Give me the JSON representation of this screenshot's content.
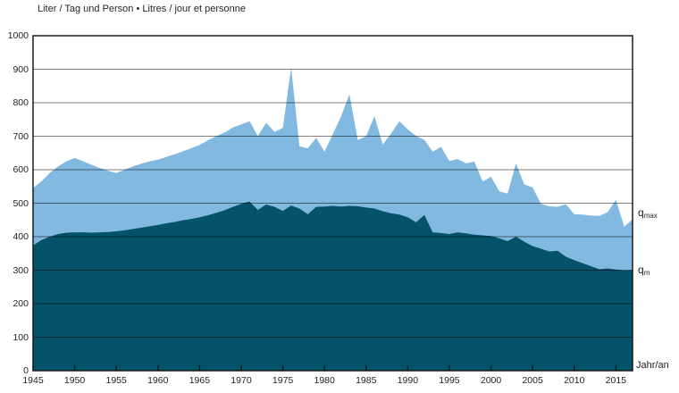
{
  "title": "Liter / Tag und Person • Litres / jour et personne",
  "axis": {
    "x_label": "Jahr/an",
    "y_ticks": [
      0,
      100,
      200,
      300,
      400,
      500,
      600,
      700,
      800,
      900,
      1000
    ],
    "x_ticks": [
      1945,
      1950,
      1955,
      1960,
      1965,
      1970,
      1975,
      1980,
      1985,
      1990,
      1995,
      2000,
      2005,
      2010,
      2015
    ]
  },
  "series_labels": {
    "qmax": {
      "base": "q",
      "sub": "max"
    },
    "qm": {
      "base": "q",
      "sub": "m"
    }
  },
  "colors": {
    "qmax": "#82B9E0",
    "qm": "#05536A",
    "grid": "#000000",
    "border": "#1a1a1a",
    "text": "#1f1f1f"
  },
  "chart_data": {
    "type": "area",
    "title": "Liter / Tag und Person • Litres / jour et personne",
    "xlabel": "Jahr/an",
    "ylabel": "Liter / Tag und Person",
    "ylim": [
      0,
      1000
    ],
    "grid": true,
    "legend_position": "right-outside",
    "x": [
      1945,
      1946,
      1947,
      1948,
      1949,
      1950,
      1951,
      1952,
      1953,
      1954,
      1955,
      1956,
      1957,
      1958,
      1959,
      1960,
      1961,
      1962,
      1963,
      1964,
      1965,
      1966,
      1967,
      1968,
      1969,
      1970,
      1971,
      1972,
      1973,
      1974,
      1975,
      1976,
      1977,
      1978,
      1979,
      1980,
      1981,
      1982,
      1983,
      1984,
      1985,
      1986,
      1987,
      1988,
      1989,
      1990,
      1991,
      1992,
      1993,
      1994,
      1995,
      1996,
      1997,
      1998,
      1999,
      2000,
      2001,
      2002,
      2003,
      2004,
      2005,
      2006,
      2007,
      2008,
      2009,
      2010,
      2011,
      2012,
      2013,
      2014,
      2015,
      2016,
      2017
    ],
    "series": [
      {
        "name": "qmax",
        "label": "q max",
        "values": [
          545,
          565,
          590,
          610,
          625,
          635,
          625,
          615,
          605,
          597,
          590,
          600,
          610,
          618,
          625,
          630,
          638,
          646,
          655,
          664,
          674,
          688,
          700,
          711,
          726,
          735,
          745,
          700,
          740,
          713,
          725,
          905,
          670,
          664,
          695,
          654,
          706,
          760,
          825,
          688,
          700,
          760,
          675,
          708,
          745,
          720,
          701,
          689,
          654,
          668,
          626,
          632,
          619,
          624,
          565,
          579,
          535,
          529,
          619,
          556,
          547,
          498,
          491,
          489,
          497,
          467,
          466,
          463,
          462,
          473,
          510,
          430,
          452
        ]
      },
      {
        "name": "qm",
        "label": "q m",
        "values": [
          374,
          390,
          400,
          408,
          412,
          413,
          413,
          412,
          413,
          414,
          416,
          419,
          423,
          427,
          431,
          435,
          440,
          444,
          449,
          453,
          458,
          464,
          471,
          479,
          489,
          498,
          505,
          480,
          496,
          489,
          477,
          493,
          484,
          467,
          489,
          490,
          492,
          490,
          492,
          491,
          487,
          484,
          476,
          470,
          466,
          458,
          443,
          465,
          413,
          411,
          408,
          413,
          410,
          406,
          404,
          402,
          395,
          387,
          400,
          385,
          372,
          364,
          356,
          358,
          340,
          330,
          321,
          312,
          303,
          305,
          302,
          299,
          300
        ]
      }
    ]
  }
}
